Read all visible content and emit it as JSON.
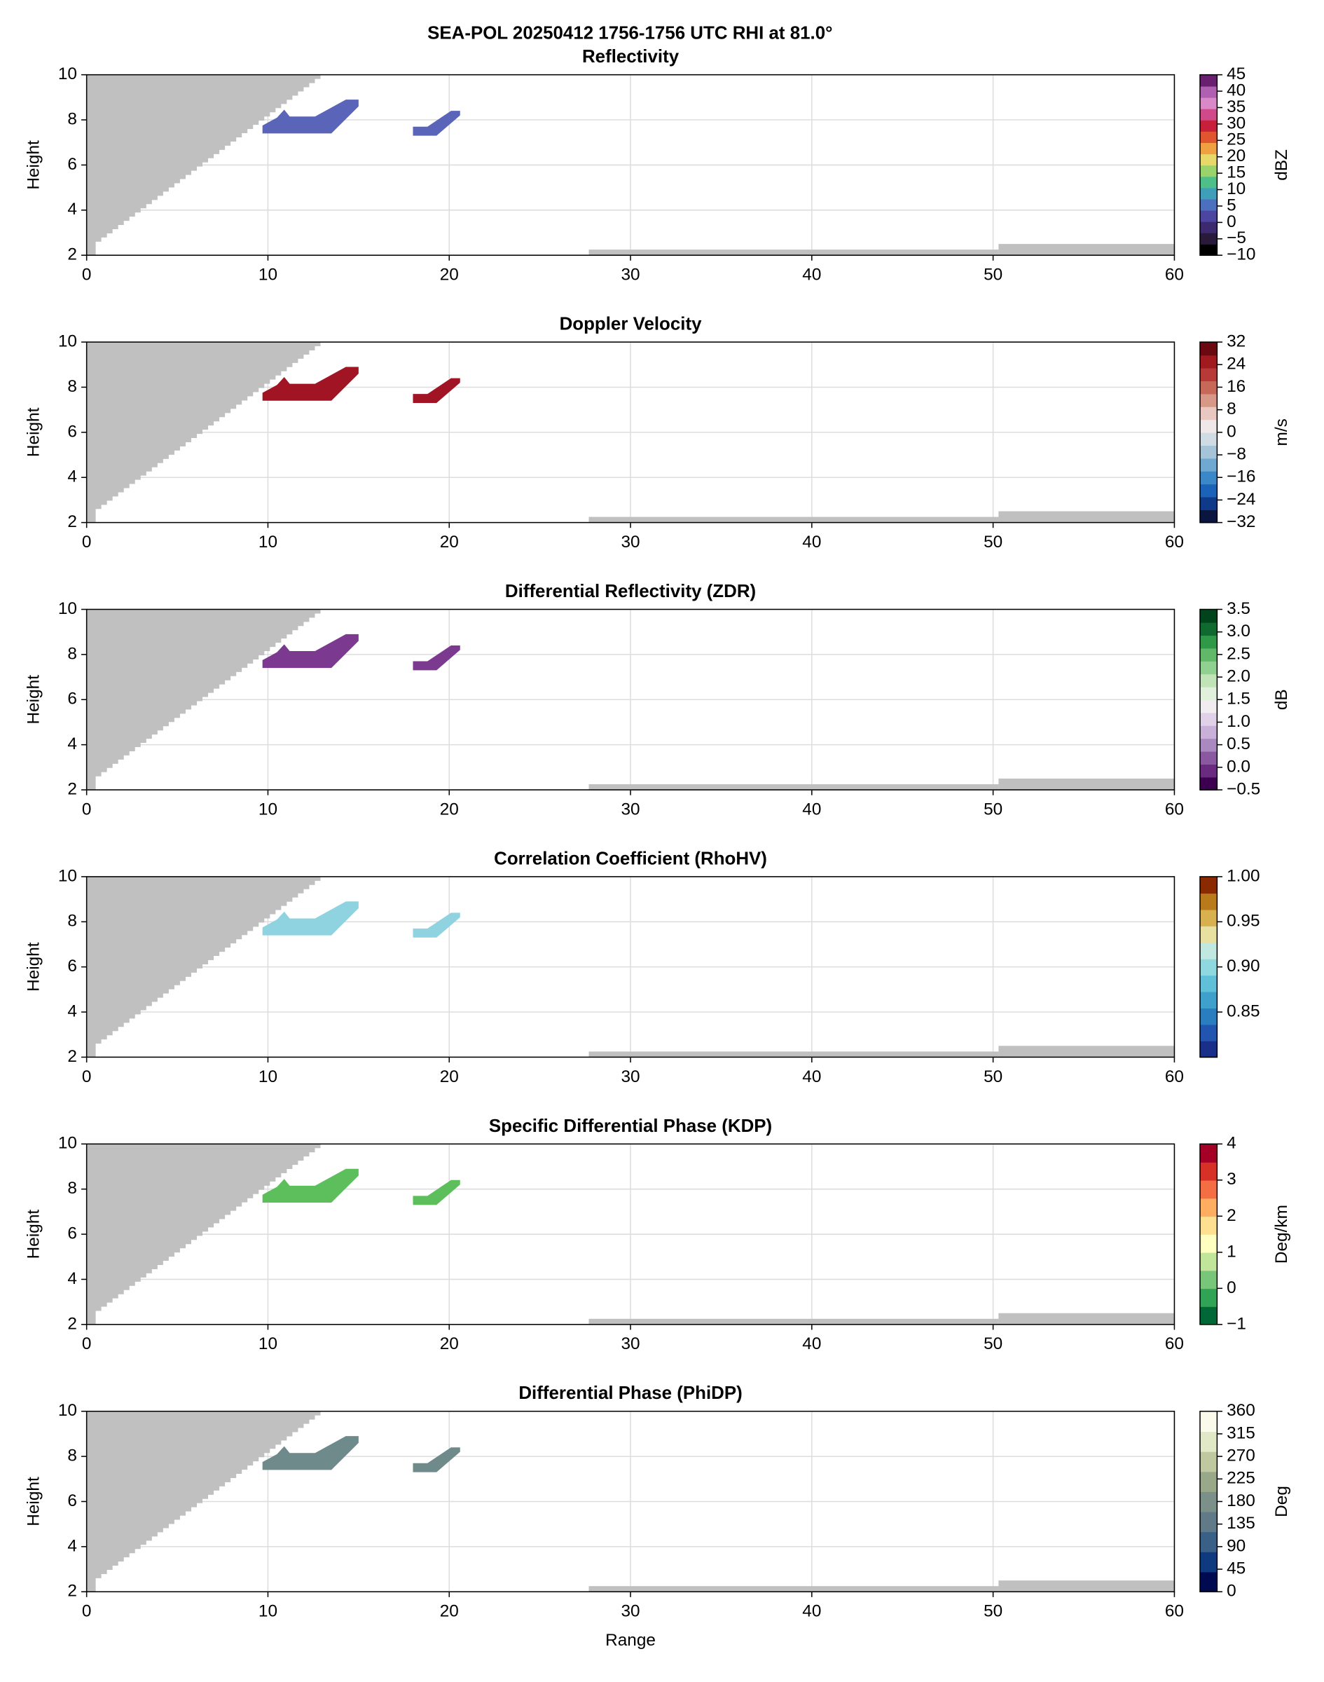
{
  "title": "SEA-POL 20250412 1756-1756 UTC RHI at 81.0°",
  "chart_data": [
    {
      "type": "rhi",
      "title": "Reflectivity",
      "y_label": "Height",
      "xlim": [
        0,
        60
      ],
      "xticks": [
        0,
        10,
        20,
        30,
        40,
        50,
        60
      ],
      "ylim": [
        2,
        10
      ],
      "yticks": [
        2,
        4,
        6,
        8,
        10
      ],
      "grid": true,
      "echo_color": "#5a64b8",
      "colorbar": {
        "label": "dBZ",
        "lim": [
          -10,
          45
        ],
        "ticks": [
          {
            "value": -10,
            "label": "−10"
          },
          {
            "value": -5,
            "label": "−5"
          },
          0,
          5,
          10,
          15,
          20,
          25,
          30,
          35,
          40,
          45
        ],
        "colors": [
          "#000000",
          "#2a1a3a",
          "#3d2a6e",
          "#4c46a0",
          "#4d6fc0",
          "#3f9fb8",
          "#4fbf8a",
          "#9ad36a",
          "#e8d86a",
          "#f0a040",
          "#e05530",
          "#c8203a",
          "#d04a8a",
          "#d988c8",
          "#b060b0",
          "#6a2070"
        ]
      }
    },
    {
      "type": "rhi",
      "title": "Doppler Velocity",
      "y_label": "Height",
      "xlim": [
        0,
        60
      ],
      "xticks": [
        0,
        10,
        20,
        30,
        40,
        50,
        60
      ],
      "ylim": [
        2,
        10
      ],
      "yticks": [
        2,
        4,
        6,
        8,
        10
      ],
      "grid": true,
      "echo_color": "#a01424",
      "colorbar": {
        "label": "m/s",
        "lim": [
          -32,
          32
        ],
        "ticks": [
          {
            "value": -32,
            "label": "−32"
          },
          {
            "value": -24,
            "label": "−24"
          },
          {
            "value": -16,
            "label": "−16"
          },
          {
            "value": -8,
            "label": "−8"
          },
          0,
          8,
          16,
          24,
          32
        ],
        "colors": [
          "#0a1540",
          "#0f3a8a",
          "#1a63b8",
          "#3a88c8",
          "#6fa8d0",
          "#a6c4d8",
          "#d0dce4",
          "#f0e8e8",
          "#e8c8c0",
          "#d89888",
          "#c86858",
          "#b83a38",
          "#a01a20",
          "#6a0a10"
        ]
      }
    },
    {
      "type": "rhi",
      "title": "Differential Reflectivity (ZDR)",
      "y_label": "Height",
      "xlim": [
        0,
        60
      ],
      "xticks": [
        0,
        10,
        20,
        30,
        40,
        50,
        60
      ],
      "ylim": [
        2,
        10
      ],
      "yticks": [
        2,
        4,
        6,
        8,
        10
      ],
      "grid": true,
      "echo_color": "#7b3a8f",
      "colorbar": {
        "label": "dB",
        "lim": [
          -0.5,
          3.5
        ],
        "ticks": [
          {
            "value": -0.5,
            "label": "−0.5"
          },
          {
            "value": 0,
            "label": "0.0"
          },
          0.5,
          {
            "value": 1,
            "label": "1.0"
          },
          1.5,
          {
            "value": 2,
            "label": "2.0"
          },
          2.5,
          {
            "value": 3,
            "label": "3.0"
          },
          3.5
        ],
        "colors": [
          "#3d0050",
          "#6a2a80",
          "#8a58a0",
          "#aa88c0",
          "#c8b0d8",
          "#e0d0e8",
          "#f0ecf0",
          "#e0f0dc",
          "#c0e4b8",
          "#90d090",
          "#60b868",
          "#2e9a48",
          "#106a30",
          "#00441b"
        ]
      }
    },
    {
      "type": "rhi",
      "title": "Correlation Coefficient (RhoHV)",
      "y_label": "Height",
      "xlim": [
        0,
        60
      ],
      "xticks": [
        0,
        10,
        20,
        30,
        40,
        50,
        60
      ],
      "ylim": [
        2,
        10
      ],
      "yticks": [
        2,
        4,
        6,
        8,
        10
      ],
      "grid": true,
      "echo_color": "#8fd3e0",
      "colorbar": {
        "label": "",
        "lim": [
          0.8,
          1.0
        ],
        "ticks": [
          0.85,
          {
            "value": 0.9,
            "label": "0.90"
          },
          0.95,
          {
            "value": 1.0,
            "label": "1.00"
          }
        ],
        "colors": [
          "#1a2f8a",
          "#2255b0",
          "#2a7ec0",
          "#40a0cc",
          "#60c0d8",
          "#90d8e0",
          "#c0e8e0",
          "#e8e0a0",
          "#d8b050",
          "#b87a1a",
          "#8a2a00"
        ]
      }
    },
    {
      "type": "rhi",
      "title": "Specific Differential Phase (KDP)",
      "y_label": "Height",
      "xlim": [
        0,
        60
      ],
      "xticks": [
        0,
        10,
        20,
        30,
        40,
        50,
        60
      ],
      "ylim": [
        2,
        10
      ],
      "yticks": [
        2,
        4,
        6,
        8,
        10
      ],
      "grid": true,
      "echo_color": "#5cbf5c",
      "colorbar": {
        "label": "Deg/km",
        "lim": [
          -1,
          4
        ],
        "ticks": [
          {
            "value": -1,
            "label": "−1"
          },
          0,
          1,
          2,
          3,
          4
        ],
        "colors": [
          "#006837",
          "#31a354",
          "#78c679",
          "#c2e699",
          "#ffffbf",
          "#fee090",
          "#fdae61",
          "#f46d43",
          "#d73027",
          "#a50026"
        ]
      }
    },
    {
      "type": "rhi",
      "title": "Differential Phase (PhiDP)",
      "x_label": "Range",
      "y_label": "Height",
      "xlim": [
        0,
        60
      ],
      "xticks": [
        0,
        10,
        20,
        30,
        40,
        50,
        60
      ],
      "ylim": [
        2,
        10
      ],
      "yticks": [
        2,
        4,
        6,
        8,
        10
      ],
      "grid": true,
      "echo_color": "#6e8a8a",
      "colorbar": {
        "label": "Deg",
        "lim": [
          0,
          360
        ],
        "ticks": [
          0,
          45,
          90,
          135,
          180,
          225,
          270,
          315,
          360
        ],
        "colors": [
          "#000a50",
          "#103a80",
          "#3a6088",
          "#607a88",
          "#7a9088",
          "#98a888",
          "#c0c8a0",
          "#e0e8c8",
          "#fbfbec"
        ]
      }
    }
  ]
}
